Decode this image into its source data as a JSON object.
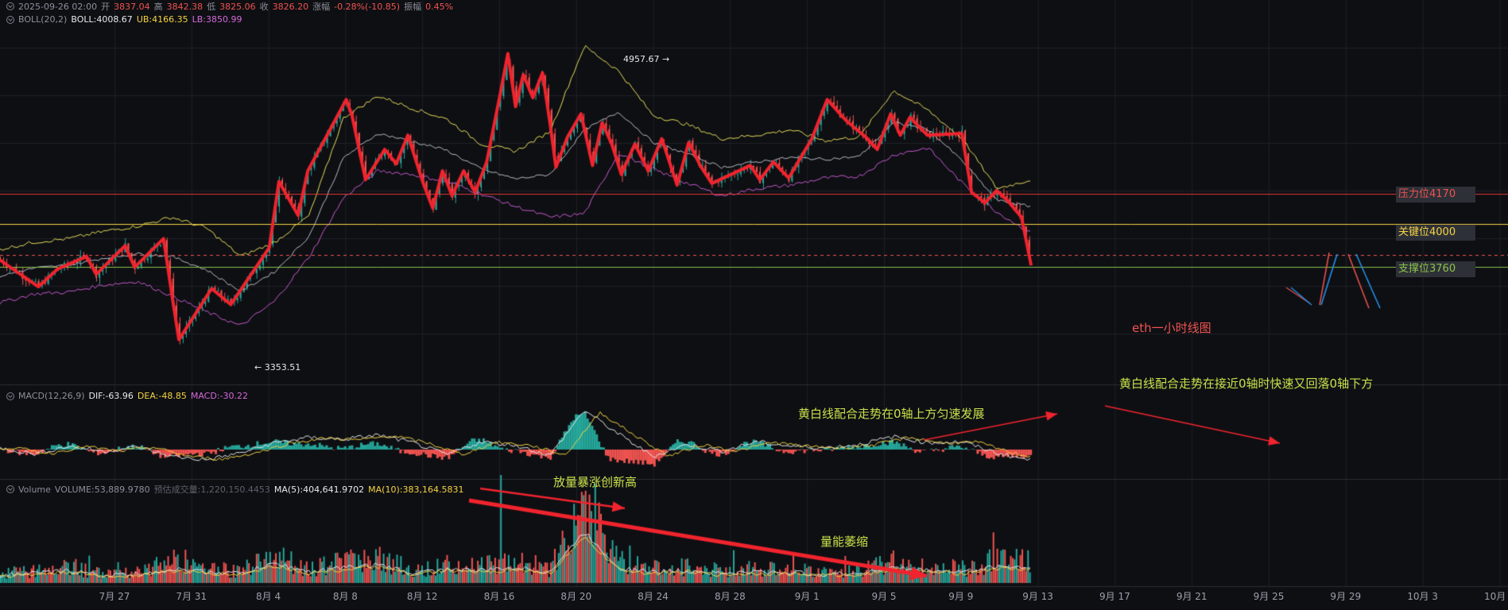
{
  "header": {
    "candle": {
      "datetime": "2025-09-26 02:00",
      "open_label": "开",
      "open": "3837.04",
      "high_label": "高",
      "high": "3842.38",
      "low_label": "低",
      "low": "3825.06",
      "close_label": "收",
      "close": "3826.20",
      "change_label": "涨幅",
      "change": "-0.28%(-10.85)",
      "amp_label": "振幅",
      "amp": "0.45%"
    },
    "boll": {
      "name": "BOLL(20,2)",
      "mid": "BOLL:4008.67",
      "ub": "UB:4166.35",
      "lb": "LB:3850.99"
    },
    "macd": {
      "name": "MACD(12,26,9)",
      "dif": "DIF:-63.96",
      "dea": "DEA:-48.85",
      "macd": "MACD:-30.22"
    },
    "volume": {
      "name": "Volume",
      "vol": "VOLUME:53,889.9780",
      "est": "预估成交量:1,220,150.4453",
      "ma5": "MA(5):404,641.9702",
      "ma10": "MA(10):383,164.5831"
    }
  },
  "levels": [
    {
      "label": "压力位4170",
      "value": 4170,
      "color": "#e53935"
    },
    {
      "label": "关键位4000",
      "value": 4000,
      "color": "#f5d442"
    },
    {
      "label": "支撑位3760",
      "value": 3760,
      "color": "#8bc34a"
    }
  ],
  "annotations": {
    "chart_title": "eth一小时线图",
    "macd_note_1": "黄白线配合走势在0轴上方匀速发展",
    "macd_note_2": "黄白线配合走势在接近0轴时快速又回落0轴下方",
    "volume_note_1": "放量暴涨创新高",
    "volume_note_2": "量能萎缩",
    "high_label": "4957.67",
    "low_label": "3353.51"
  },
  "colors": {
    "up": "#26a69a",
    "down": "#ef5350",
    "trend": "#f0242e",
    "boll_upper": "#e8e05a",
    "boll_mid": "#b9bcc4",
    "boll_lower": "#c85bd0",
    "dif": "#e6e8ec",
    "dea": "#f5d442",
    "background": "#0e0f13",
    "grid": "#1f2128"
  },
  "chart_data": {
    "type": "line",
    "title": "eth一小时线图",
    "xlabel": "",
    "ylabel": "",
    "x_ticks": [
      "7月 27",
      "7月 31",
      "8月 4",
      "8月 8",
      "8月 12",
      "8月 16",
      "8月 20",
      "8月 24",
      "8月 28",
      "9月 1",
      "9月 5",
      "9月 9",
      "9月 13",
      "9月 17",
      "9月 21",
      "9月 25",
      "9月 29",
      "10月 3",
      "10月 7"
    ],
    "ylim": [
      3120,
      5080
    ],
    "price_path_days": [
      [
        0,
        3800
      ],
      [
        2.0,
        3650
      ],
      [
        3.0,
        3750
      ],
      [
        4.5,
        3820
      ],
      [
        5.0,
        3720
      ],
      [
        6.5,
        3880
      ],
      [
        7.0,
        3760
      ],
      [
        8.5,
        3920
      ],
      [
        9.0,
        3560
      ],
      [
        9.3,
        3353.51
      ],
      [
        11.0,
        3640
      ],
      [
        12.0,
        3550
      ],
      [
        14.0,
        3870
      ],
      [
        14.5,
        4240
      ],
      [
        15.5,
        4050
      ],
      [
        16.0,
        4300
      ],
      [
        17.0,
        4500
      ],
      [
        18.0,
        4700
      ],
      [
        18.3,
        4610
      ],
      [
        19.0,
        4250
      ],
      [
        20.0,
        4420
      ],
      [
        20.6,
        4340
      ],
      [
        21.2,
        4500
      ],
      [
        22.0,
        4230
      ],
      [
        22.5,
        4090
      ],
      [
        23.0,
        4300
      ],
      [
        23.5,
        4160
      ],
      [
        24.1,
        4300
      ],
      [
        24.7,
        4180
      ],
      [
        25.3,
        4350
      ],
      [
        26.0,
        4730
      ],
      [
        26.4,
        4957.67
      ],
      [
        26.8,
        4660
      ],
      [
        27.2,
        4840
      ],
      [
        27.7,
        4710
      ],
      [
        28.2,
        4850
      ],
      [
        28.6,
        4560
      ],
      [
        28.9,
        4320
      ],
      [
        29.5,
        4490
      ],
      [
        30.2,
        4620
      ],
      [
        30.8,
        4330
      ],
      [
        31.3,
        4570
      ],
      [
        31.8,
        4450
      ],
      [
        32.3,
        4280
      ],
      [
        33.0,
        4450
      ],
      [
        33.7,
        4300
      ],
      [
        34.4,
        4480
      ],
      [
        35.2,
        4220
      ],
      [
        35.8,
        4460
      ],
      [
        36.4,
        4330
      ],
      [
        37.0,
        4230
      ],
      [
        39.0,
        4330
      ],
      [
        39.5,
        4250
      ],
      [
        40.2,
        4350
      ],
      [
        41.0,
        4260
      ],
      [
        41.6,
        4370
      ],
      [
        42.2,
        4480
      ],
      [
        43.0,
        4700
      ],
      [
        44.0,
        4580
      ],
      [
        45.0,
        4490
      ],
      [
        45.6,
        4420
      ],
      [
        46.3,
        4620
      ],
      [
        46.8,
        4500
      ],
      [
        47.3,
        4600
      ],
      [
        48.2,
        4500
      ],
      [
        50.0,
        4510
      ],
      [
        50.5,
        4180
      ],
      [
        51.2,
        4120
      ],
      [
        51.8,
        4190
      ],
      [
        52.4,
        4130
      ],
      [
        53.1,
        4040
      ],
      [
        53.6,
        3770
      ]
    ],
    "series": [
      {
        "type": "boll_upper",
        "values": [
          3860,
          3900,
          3920,
          3960,
          3990,
          4040,
          3980,
          3820,
          3900,
          4050,
          4600,
          4720,
          4650,
          4590,
          4450,
          4410,
          4520,
          5000,
          4860,
          4610,
          4560,
          4480,
          4500,
          4530,
          4470,
          4490,
          4750,
          4640,
          4480,
          4200,
          4250
        ]
      },
      {
        "type": "boll_lower",
        "values": [
          3560,
          3610,
          3620,
          3660,
          3680,
          3600,
          3510,
          3430,
          3570,
          3820,
          4150,
          4300,
          4280,
          4240,
          4170,
          4100,
          4040,
          4060,
          4400,
          4310,
          4230,
          4160,
          4200,
          4220,
          4260,
          4270,
          4390,
          4430,
          4230,
          4070,
          3950
        ]
      },
      {
        "type": "macd_dif",
        "values": [
          10,
          -25,
          20,
          -10,
          15,
          -40,
          -60,
          -20,
          40,
          70,
          60,
          85,
          40,
          -30,
          45,
          25,
          -35,
          230,
          90,
          -40,
          30,
          -10,
          45,
          20,
          10,
          30,
          75,
          40,
          45,
          -20,
          -63.96
        ]
      },
      {
        "type": "volume",
        "values": [
          20,
          25,
          35,
          18,
          22,
          40,
          30,
          25,
          60,
          30,
          45,
          55,
          25,
          40,
          35,
          45,
          30,
          170,
          45,
          30,
          35,
          25,
          30,
          28,
          22,
          25,
          45,
          35,
          30,
          50,
          45
        ]
      }
    ]
  }
}
